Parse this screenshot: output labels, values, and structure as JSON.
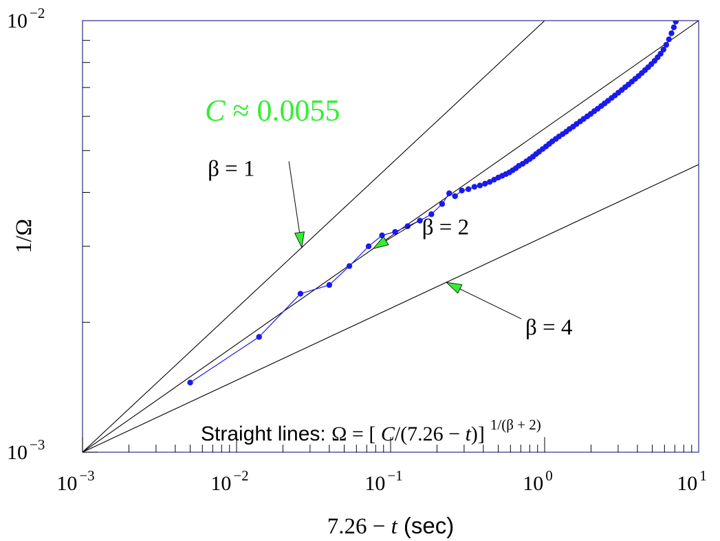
{
  "chart_data": {
    "type": "scatter",
    "xscale": "log",
    "yscale": "log",
    "xlim": [
      0.001,
      10
    ],
    "ylim": [
      0.001,
      0.01
    ],
    "grid": false,
    "xlabel_prefix": "7.26 − ",
    "xlabel_var": "t",
    "xlabel_unit": " (sec)",
    "ylabel": "1/Ω",
    "x_tick_base": "10",
    "x_ticks": [
      {
        "value": 0.001,
        "exp": "−3"
      },
      {
        "value": 0.01,
        "exp": "−2"
      },
      {
        "value": 0.1,
        "exp": "−1"
      },
      {
        "value": 1,
        "exp": "0"
      },
      {
        "value": 10,
        "exp": "1"
      }
    ],
    "y_tick_base": "10",
    "y_ticks": [
      {
        "value": 0.001,
        "exp": "−3"
      },
      {
        "value": 0.01,
        "exp": "−2"
      }
    ],
    "annotation_C": {
      "var": "C",
      "text": " ≈ 0.0055",
      "color": "#33ee33"
    },
    "formula": {
      "prefix": "Straight lines: ",
      "omega": "Ω",
      "eq": " = ",
      "open": "[ ",
      "C": "C",
      "mid": "/(7.26 − ",
      "t": "t",
      "close": ")]",
      "exponent": "1/(β + 2)"
    },
    "reference_lines": [
      {
        "beta": 1,
        "label": "β = 1",
        "C": 0.0055,
        "x0": 0.001
      },
      {
        "beta": 2,
        "label": "β = 2",
        "C": 0.0055,
        "x0": 0.001
      },
      {
        "beta": 4,
        "label": "β = 4",
        "C": 0.0055,
        "x0": 0.001
      }
    ],
    "line_labels": [
      {
        "text": "β = 1",
        "beta": 1,
        "tx": 0.0065,
        "ty": 0.00455,
        "ax": 0.0265
      },
      {
        "text": "β = 2",
        "beta": 2,
        "tx": 0.16,
        "ty": 0.00333,
        "ax": 0.077
      },
      {
        "text": "β = 4",
        "beta": 4,
        "tx": 0.75,
        "ty": 0.00195,
        "ax": 0.23
      }
    ],
    "series": [
      {
        "color": "#1a1aee",
        "points": [
          [
            0.005,
            0.00145
          ],
          [
            0.014,
            0.00185
          ],
          [
            0.026,
            0.00233
          ],
          [
            0.04,
            0.00244
          ],
          [
            0.054,
            0.0027
          ],
          [
            0.072,
            0.003
          ],
          [
            0.088,
            0.00318
          ],
          [
            0.107,
            0.00324
          ],
          [
            0.129,
            0.00334
          ],
          [
            0.155,
            0.00344
          ],
          [
            0.184,
            0.00356
          ],
          [
            0.216,
            0.00376
          ],
          [
            0.24,
            0.00398
          ],
          [
            0.262,
            0.00392
          ],
          [
            0.29,
            0.00404
          ],
          [
            0.32,
            0.00407
          ],
          [
            0.35,
            0.00412
          ],
          [
            0.38,
            0.00415
          ],
          [
            0.41,
            0.00419
          ],
          [
            0.44,
            0.00423
          ],
          [
            0.47,
            0.00428
          ],
          [
            0.5,
            0.00433
          ],
          [
            0.53,
            0.00437
          ],
          [
            0.56,
            0.00441
          ],
          [
            0.59,
            0.00445
          ],
          [
            0.62,
            0.0045
          ],
          [
            0.65,
            0.00455
          ],
          [
            0.68,
            0.00461
          ],
          [
            0.72,
            0.00466
          ],
          [
            0.76,
            0.00472
          ],
          [
            0.8,
            0.00478
          ],
          [
            0.84,
            0.00484
          ],
          [
            0.88,
            0.00491
          ],
          [
            0.92,
            0.00497
          ],
          [
            0.97,
            0.00504
          ],
          [
            1.02,
            0.00511
          ],
          [
            1.07,
            0.00518
          ],
          [
            1.12,
            0.00525
          ],
          [
            1.18,
            0.00532
          ],
          [
            1.24,
            0.00539
          ],
          [
            1.31,
            0.00546
          ],
          [
            1.38,
            0.00553
          ],
          [
            1.45,
            0.00561
          ],
          [
            1.53,
            0.00568
          ],
          [
            1.61,
            0.00576
          ],
          [
            1.7,
            0.00584
          ],
          [
            1.79,
            0.00592
          ],
          [
            1.89,
            0.006
          ],
          [
            1.99,
            0.00608
          ],
          [
            2.1,
            0.00617
          ],
          [
            2.21,
            0.00625
          ],
          [
            2.33,
            0.00634
          ],
          [
            2.45,
            0.00643
          ],
          [
            2.58,
            0.00652
          ],
          [
            2.72,
            0.00662
          ],
          [
            2.86,
            0.00671
          ],
          [
            3.01,
            0.00681
          ],
          [
            3.17,
            0.00691
          ],
          [
            3.33,
            0.00701
          ],
          [
            3.5,
            0.00711
          ],
          [
            3.68,
            0.00722
          ],
          [
            3.87,
            0.00733
          ],
          [
            4.07,
            0.00744
          ],
          [
            4.27,
            0.00756
          ],
          [
            4.48,
            0.00768
          ],
          [
            4.7,
            0.0078
          ],
          [
            4.93,
            0.00793
          ],
          [
            5.17,
            0.00807
          ],
          [
            5.41,
            0.00822
          ],
          [
            5.66,
            0.00838
          ],
          [
            5.91,
            0.00857
          ],
          [
            6.16,
            0.00879
          ],
          [
            6.41,
            0.00905
          ],
          [
            6.66,
            0.00935
          ],
          [
            6.9,
            0.00965
          ],
          [
            7.1,
            0.00995
          ]
        ]
      }
    ]
  }
}
